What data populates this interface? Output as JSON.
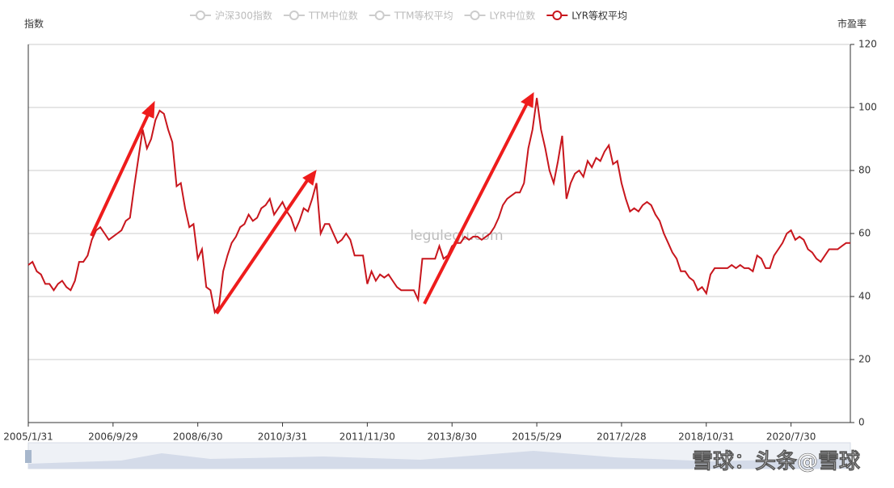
{
  "chart_data": {
    "type": "line",
    "y_label": "指数",
    "y2_label": "市盈率",
    "inactive_series": [
      "沪深300指数",
      "TTM中位数",
      "TTM等权平均",
      "LYR中位数"
    ],
    "inactive_color": "#cccccc",
    "watermarks": [
      "legulegu.com",
      "雪球：头条@雪球"
    ],
    "categories": [
      "2005/1/31",
      null,
      null,
      null,
      null,
      null,
      null,
      null,
      null,
      null,
      null,
      null,
      null,
      null,
      null,
      null,
      null,
      null,
      null,
      null,
      "2006/9/29",
      null,
      null,
      null,
      null,
      null,
      null,
      null,
      null,
      null,
      null,
      null,
      null,
      null,
      null,
      null,
      null,
      null,
      null,
      null,
      "2008/6/30",
      null,
      null,
      null,
      null,
      null,
      null,
      null,
      null,
      null,
      null,
      null,
      null,
      null,
      null,
      null,
      null,
      null,
      null,
      null,
      "2010/3/31",
      null,
      null,
      null,
      null,
      null,
      null,
      null,
      null,
      null,
      null,
      null,
      null,
      null,
      null,
      null,
      null,
      null,
      null,
      null,
      "2011/11/30",
      null,
      null,
      null,
      null,
      null,
      null,
      null,
      null,
      null,
      null,
      null,
      null,
      null,
      null,
      null,
      null,
      null,
      null,
      null,
      "2013/8/30",
      null,
      null,
      null,
      null,
      null,
      null,
      null,
      null,
      null,
      null,
      null,
      null,
      null,
      null,
      null,
      null,
      null,
      null,
      null,
      "2015/5/29",
      null,
      null,
      null,
      null,
      null,
      null,
      null,
      null,
      null,
      null,
      null,
      null,
      null,
      null,
      null,
      null,
      null,
      null,
      null,
      "2017/2/28",
      null,
      null,
      null,
      null,
      null,
      null,
      null,
      null,
      null,
      null,
      null,
      null,
      null,
      null,
      null,
      null,
      null,
      null,
      null,
      "2018/10/31",
      null,
      null,
      null,
      null,
      null,
      null,
      null,
      null,
      null,
      null,
      null,
      null,
      null,
      null,
      null,
      null,
      null,
      null,
      null,
      "2020/7/30",
      null,
      null,
      null,
      null,
      null,
      null,
      null,
      null,
      null,
      null,
      null,
      null,
      null,
      null
    ],
    "series": [
      {
        "name": "LYR等权平均",
        "color": "#c8161d",
        "axis": "y2",
        "values": [
          50,
          51,
          48,
          47,
          44,
          44,
          42,
          44,
          45,
          43,
          42,
          45,
          51,
          51,
          53,
          58,
          61,
          62,
          60,
          58,
          59,
          60,
          61,
          64,
          65,
          75,
          84,
          93,
          87,
          90,
          96,
          99,
          98,
          93,
          89,
          75,
          76,
          68,
          62,
          63,
          52,
          55,
          43,
          42,
          35,
          37,
          48,
          53,
          57,
          59,
          62,
          63,
          66,
          64,
          65,
          68,
          69,
          71,
          66,
          68,
          70,
          67,
          65,
          61,
          64,
          68,
          67,
          71,
          76,
          60,
          63,
          63,
          60,
          57,
          58,
          60,
          58,
          53,
          53,
          53,
          44,
          48,
          45,
          47,
          46,
          47,
          45,
          43,
          42,
          42,
          42,
          42,
          39,
          52,
          52,
          52,
          52,
          56,
          52,
          53,
          56,
          57,
          57,
          59,
          58,
          59,
          59,
          58,
          59,
          60,
          62,
          65,
          69,
          71,
          72,
          73,
          73,
          76,
          87,
          93,
          103,
          93,
          87,
          80,
          76,
          83,
          91,
          71,
          76,
          79,
          80,
          78,
          83,
          81,
          84,
          83,
          86,
          88,
          82,
          83,
          76,
          71,
          67,
          68,
          67,
          69,
          70,
          69,
          66,
          64,
          60,
          57,
          54,
          52,
          48,
          48,
          46,
          45,
          42,
          43,
          41,
          47,
          49,
          49,
          49,
          49,
          50,
          49,
          50,
          49,
          49,
          48,
          53,
          52,
          49,
          49,
          53,
          55,
          57,
          60,
          61,
          58,
          59,
          58,
          55,
          54,
          52,
          51,
          53,
          55,
          55,
          55,
          56,
          57,
          57
        ]
      }
    ],
    "y2lim": [
      0,
      120
    ],
    "y2ticks": [
      0,
      20,
      40,
      60,
      80,
      100,
      120
    ],
    "grid": true
  }
}
